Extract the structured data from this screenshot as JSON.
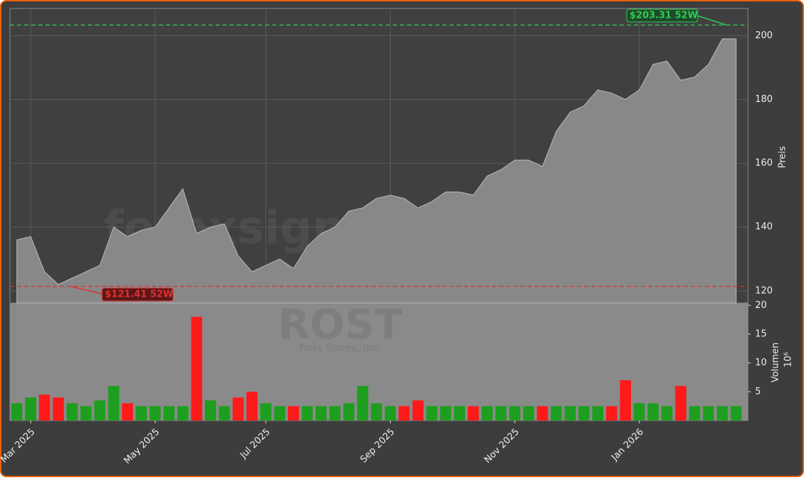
{
  "chart_data": {
    "type": "area",
    "watermark": "forexsignale.trade",
    "ticker": "ROST",
    "company": "Ross Stores, Inc.",
    "categories": [
      null,
      "Mar 2025",
      null,
      null,
      null,
      null,
      null,
      null,
      null,
      null,
      "May 2025",
      null,
      null,
      null,
      null,
      null,
      null,
      null,
      "Jul 2025",
      null,
      null,
      null,
      null,
      null,
      null,
      null,
      null,
      "Sep 2025",
      null,
      null,
      null,
      null,
      null,
      null,
      null,
      null,
      "Nov 2025",
      null,
      null,
      null,
      null,
      null,
      null,
      null,
      null,
      "Jan 2026",
      null,
      null,
      null,
      null,
      null,
      null,
      null
    ],
    "series": [
      {
        "name": "Preis",
        "color": "#888888",
        "values": [
          136,
          137,
          126,
          122,
          124,
          126,
          128,
          140,
          137,
          139,
          140,
          146,
          152,
          138,
          140,
          141,
          131,
          126,
          128,
          130,
          127,
          134,
          138,
          140,
          145,
          146,
          149,
          150,
          149,
          146,
          148,
          151,
          151,
          150,
          156,
          158,
          161,
          161,
          159,
          170,
          176,
          178,
          183,
          182,
          180,
          183,
          191,
          192,
          186,
          187,
          191,
          199,
          199
        ]
      },
      {
        "name": "Volumen",
        "axis": "y2",
        "up_color": "#1e9e1e",
        "down_color": "#ff1a1a",
        "values": [
          3,
          4,
          4.5,
          4,
          3,
          2.5,
          3.5,
          6,
          3,
          2.5,
          2.5,
          2.5,
          2.5,
          18,
          3.5,
          2.5,
          4,
          5,
          3,
          2.5,
          2.5,
          2.5,
          2.5,
          2.5,
          3,
          6,
          3,
          2.5,
          2.5,
          3.5,
          2.5,
          2.5,
          2.5,
          2.5,
          2.5,
          2.5,
          2.5,
          2.5,
          2.5,
          2.5,
          2.5,
          2.5,
          2.5,
          2.5,
          7,
          3,
          3,
          2.5,
          6,
          2.5,
          2.5,
          2.5,
          2.5
        ]
      }
    ],
    "ylabel": "Preis",
    "y2label": "Volumen",
    "y2unit": "10⁶",
    "ylim": [
      116.2,
      208.5
    ],
    "yticks": [
      120,
      140,
      160,
      180,
      200
    ],
    "y2lim": [
      0,
      20.4
    ],
    "y2ticks": [
      5,
      10,
      15,
      20
    ],
    "high": {
      "value": 203.31,
      "label": "$203.31 52W",
      "color": "#2ecc55"
    },
    "low": {
      "value": 121.41,
      "label": "$121.41 52W",
      "color": "#e03030"
    },
    "grid": true
  }
}
